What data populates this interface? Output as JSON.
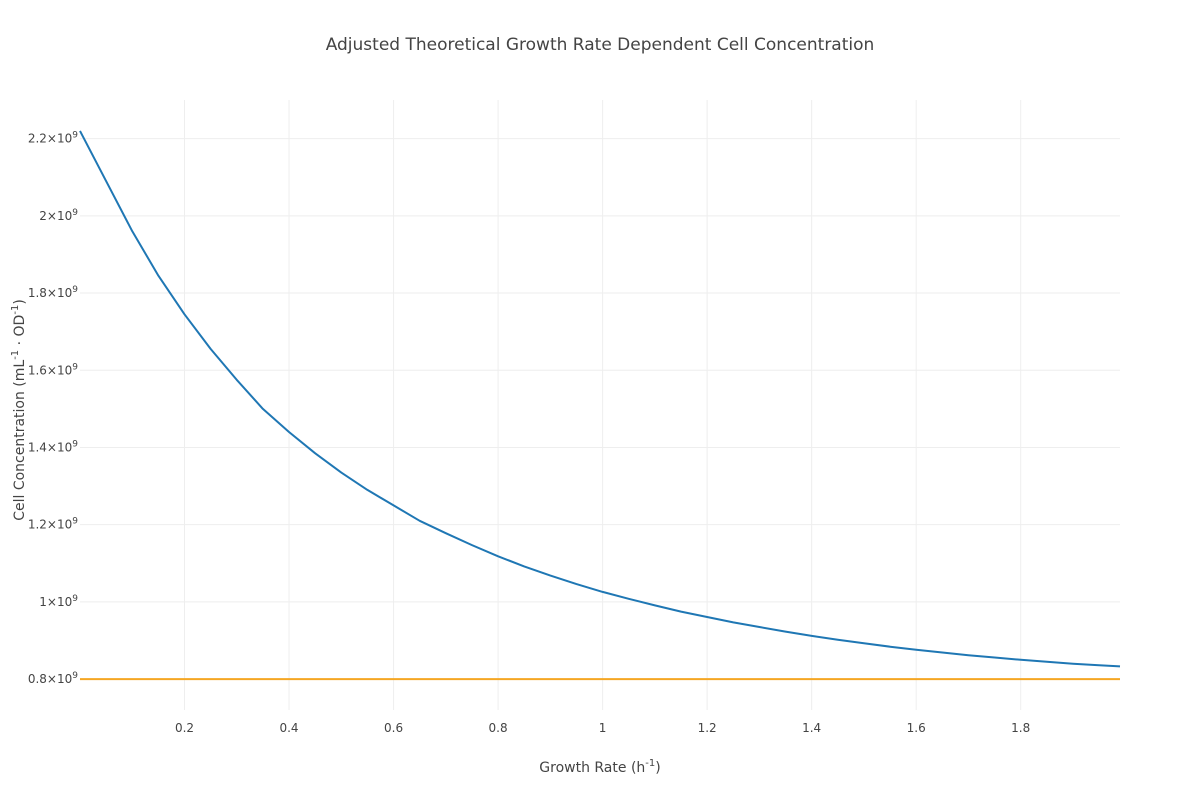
{
  "chart_data": {
    "type": "line",
    "title": "Adjusted Theoretical Growth Rate Dependent Cell Concentration",
    "xlabel": {
      "base": "Growth Rate (h",
      "sup": "-1",
      "end": ")"
    },
    "ylabel": {
      "p1": "Cell Concentration (mL",
      "sup1": "-1",
      "p2": " · OD",
      "sup2": "-1",
      "p3": ")"
    },
    "xlim": [
      0,
      1.99
    ],
    "ylim": [
      0.72,
      2.3
    ],
    "x_ticks": [
      {
        "value": 0.2,
        "label": "0.2"
      },
      {
        "value": 0.4,
        "label": "0.4"
      },
      {
        "value": 0.6,
        "label": "0.6"
      },
      {
        "value": 0.8,
        "label": "0.8"
      },
      {
        "value": 1.0,
        "label": "1"
      },
      {
        "value": 1.2,
        "label": "1.2"
      },
      {
        "value": 1.4,
        "label": "1.4"
      },
      {
        "value": 1.6,
        "label": "1.6"
      },
      {
        "value": 1.8,
        "label": "1.8"
      }
    ],
    "y_ticks": [
      {
        "value": 0.8,
        "mantissa": "0.8×10",
        "exp": "9"
      },
      {
        "value": 1.0,
        "mantissa": "1×10",
        "exp": "9"
      },
      {
        "value": 1.2,
        "mantissa": "1.2×10",
        "exp": "9"
      },
      {
        "value": 1.4,
        "mantissa": "1.4×10",
        "exp": "9"
      },
      {
        "value": 1.6,
        "mantissa": "1.6×10",
        "exp": "9"
      },
      {
        "value": 1.8,
        "mantissa": "1.8×10",
        "exp": "9"
      },
      {
        "value": 2.0,
        "mantissa": "2×10",
        "exp": "9"
      },
      {
        "value": 2.2,
        "mantissa": "2.2×10",
        "exp": "9"
      }
    ],
    "y_unit_multiplier": 1000000000,
    "grid": true,
    "series": [
      {
        "color": "#1f77b4",
        "x": [
          0,
          0.05,
          0.1,
          0.15,
          0.2,
          0.25,
          0.3,
          0.35,
          0.4,
          0.45,
          0.5,
          0.55,
          0.6,
          0.65,
          0.7,
          0.75,
          0.8,
          0.85,
          0.9,
          0.95,
          1.0,
          1.05,
          1.1,
          1.15,
          1.2,
          1.25,
          1.3,
          1.35,
          1.4,
          1.45,
          1.5,
          1.55,
          1.6,
          1.65,
          1.7,
          1.75,
          1.8,
          1.85,
          1.9,
          1.95,
          1.99
        ],
        "y": [
          2.22,
          2.09,
          1.96,
          1.845,
          1.745,
          1.655,
          1.575,
          1.5,
          1.44,
          1.385,
          1.335,
          1.29,
          1.25,
          1.21,
          1.178,
          1.147,
          1.118,
          1.092,
          1.068,
          1.046,
          1.026,
          1.008,
          0.991,
          0.975,
          0.961,
          0.947,
          0.935,
          0.923,
          0.912,
          0.902,
          0.893,
          0.884,
          0.876,
          0.869,
          0.862,
          0.856,
          0.85,
          0.845,
          0.84,
          0.836,
          0.833
        ]
      },
      {
        "color": "#f5a623",
        "x": [
          0,
          1.99
        ],
        "y": [
          0.8,
          0.8
        ]
      }
    ]
  }
}
